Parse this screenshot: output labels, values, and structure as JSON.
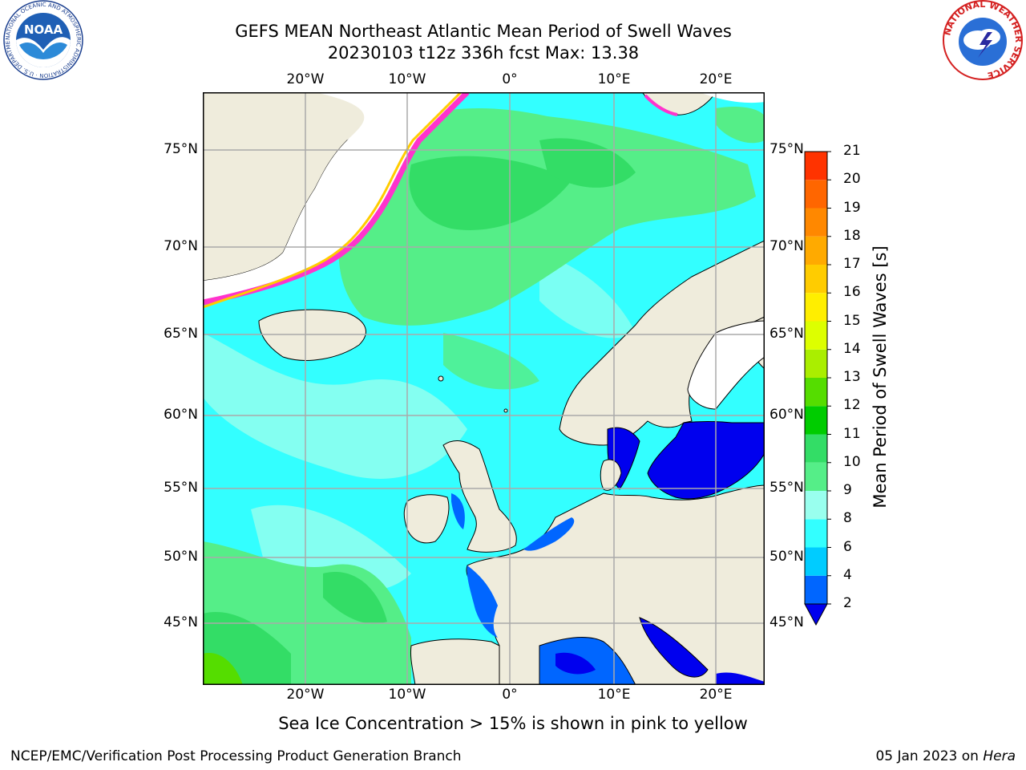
{
  "title": {
    "line1": "GEFS MEAN Northeast Atlantic Mean Period of Swell Waves",
    "line2": "20230103 t12z 336h fcst   Max: 13.38"
  },
  "map": {
    "lon_ticks": [
      "20°W",
      "10°W",
      "0°",
      "10°E",
      "20°E"
    ],
    "lat_ticks": [
      "75°N",
      "70°N",
      "65°N",
      "60°N",
      "55°N",
      "50°N",
      "45°N"
    ],
    "extent": {
      "lon": [
        -30,
        25
      ],
      "lat": [
        41,
        78
      ]
    }
  },
  "colorbar": {
    "label": "Mean Period of Swell Waves [s]",
    "levels": [
      "2",
      "4",
      "6",
      "8",
      "9",
      "10",
      "11",
      "12",
      "13",
      "14",
      "15",
      "16",
      "17",
      "18",
      "19",
      "20",
      "21"
    ],
    "colors": [
      "#0066ff",
      "#00ccff",
      "#33ffff",
      "#99ffee",
      "#55ee88",
      "#33dd66",
      "#00cc00",
      "#55dd00",
      "#aaee00",
      "#ddff00",
      "#ffee00",
      "#ffcc00",
      "#ffaa00",
      "#ff8800",
      "#ff6600",
      "#ff3300"
    ],
    "under_color": "#0000ee"
  },
  "caption": "Sea Ice Concentration > 15% is shown in pink to yellow",
  "footer": {
    "left": "NCEP/EMC/Verification Post Processing Product Generation Branch",
    "right_date": "05 Jan 2023 on ",
    "right_host": "Hera"
  },
  "logos": {
    "noaa_text": "NOAA",
    "noaa_ring": "NATIONAL OCEANIC AND ATMOSPHERIC ADMINISTRATION · U.S. DEPARTMENT OF COMMERCE",
    "nws_ring": "NATIONAL WEATHER SERVICE"
  },
  "colors": {
    "land": "#efecdc",
    "ocean_base": "#33ffff",
    "ice_edge": "#ff33cc",
    "grid": "#aaaaaa"
  }
}
